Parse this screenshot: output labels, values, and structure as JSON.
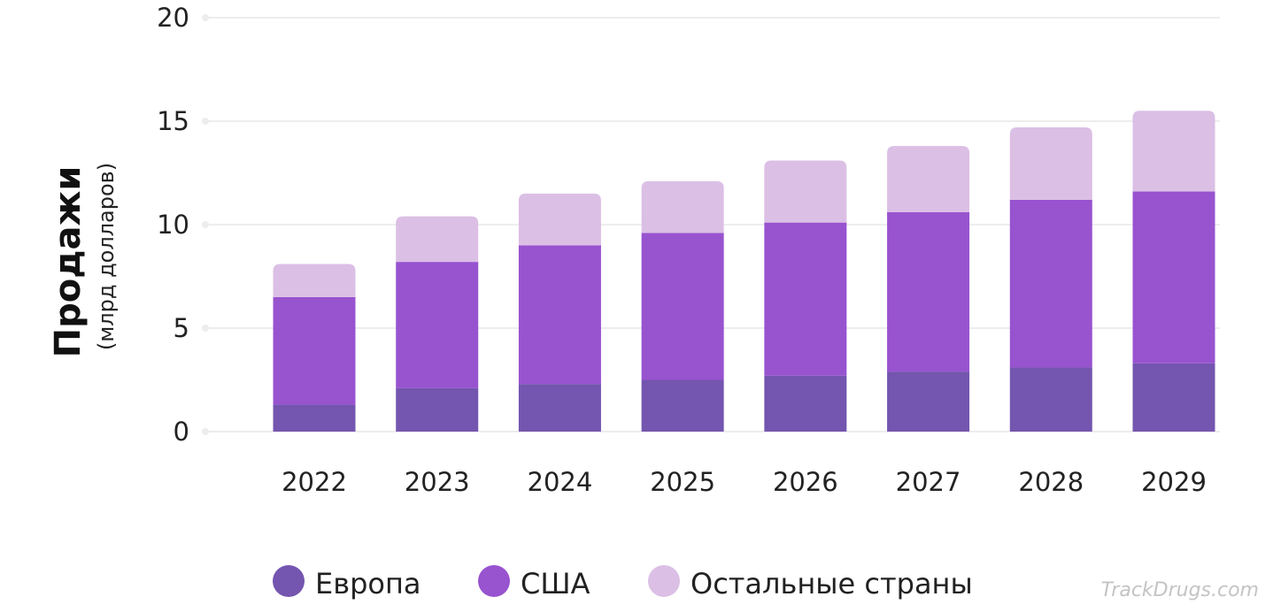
{
  "chart_data": {
    "type": "bar",
    "stacked": true,
    "categories": [
      "2022",
      "2023",
      "2024",
      "2025",
      "2026",
      "2027",
      "2028",
      "2029"
    ],
    "series": [
      {
        "name": "Европа",
        "color": "#7455af",
        "values": [
          1.3,
          2.1,
          2.3,
          2.5,
          2.7,
          2.9,
          3.1,
          3.3
        ]
      },
      {
        "name": "США",
        "color": "#9853cf",
        "values": [
          5.2,
          6.1,
          6.7,
          7.1,
          7.4,
          7.7,
          8.1,
          8.3
        ]
      },
      {
        "name": "Остальные страны",
        "color": "#dbbfe5",
        "values": [
          1.6,
          2.2,
          2.5,
          2.5,
          3.0,
          3.2,
          3.5,
          3.9
        ]
      }
    ],
    "ylabel": "Продажи",
    "ylabel_sub": "(млрд долларов)",
    "xlabel": "",
    "title": "",
    "ylim": [
      0,
      20
    ],
    "yticks": [
      0,
      5,
      10,
      15,
      20
    ],
    "grid": true,
    "legend_position": "bottom"
  },
  "watermark": "TrackDrugs.com"
}
